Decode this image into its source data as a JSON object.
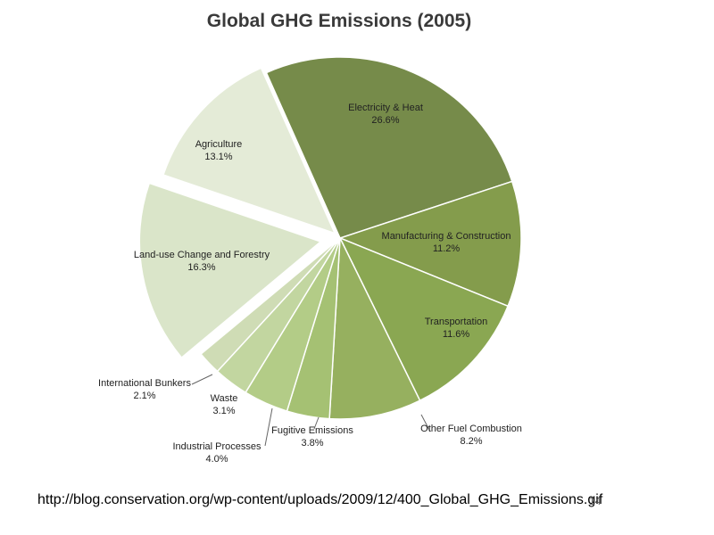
{
  "chart_data": {
    "type": "pie",
    "title": "Global GHG Emissions (2005)",
    "unit": "%",
    "slices": [
      {
        "name": "Electricity & Heat",
        "value": 26.6,
        "label": "26.6%",
        "color": "#768b4a",
        "exploded": false
      },
      {
        "name": "Manufacturing & Construction",
        "value": 11.2,
        "label": "11.2%",
        "color": "#849c4c",
        "exploded": false
      },
      {
        "name": "Transportation",
        "value": 11.6,
        "label": "11.6%",
        "color": "#8aa752",
        "exploded": false
      },
      {
        "name": "Other Fuel Combustion",
        "value": 8.2,
        "label": "8.2%",
        "color": "#96b05f",
        "exploded": false
      },
      {
        "name": "Fugitive Emissions",
        "value": 3.8,
        "label": "3.8%",
        "color": "#a5c173",
        "exploded": false
      },
      {
        "name": "Industrial Processes",
        "value": 4.0,
        "label": "4.0%",
        "color": "#b3cc87",
        "exploded": false
      },
      {
        "name": "Waste",
        "value": 3.1,
        "label": "3.1%",
        "color": "#c2d6a0",
        "exploded": false
      },
      {
        "name": "International Bunkers",
        "value": 2.1,
        "label": "2.1%",
        "color": "#cfdcb5",
        "exploded": false
      },
      {
        "name": "Land-use Change and Forestry",
        "value": 16.3,
        "label": "16.3%",
        "color": "#dae5c9",
        "exploded": true
      },
      {
        "name": "Agriculture",
        "value": 13.1,
        "label": "13.1%",
        "color": "#e4ebd7",
        "exploded": true
      }
    ]
  },
  "footer": {
    "source_url": "http://blog.conservation.org/wp-content/uploads/2009/12/400_Global_GHG_Emissions.gif",
    "page_number": "14"
  }
}
